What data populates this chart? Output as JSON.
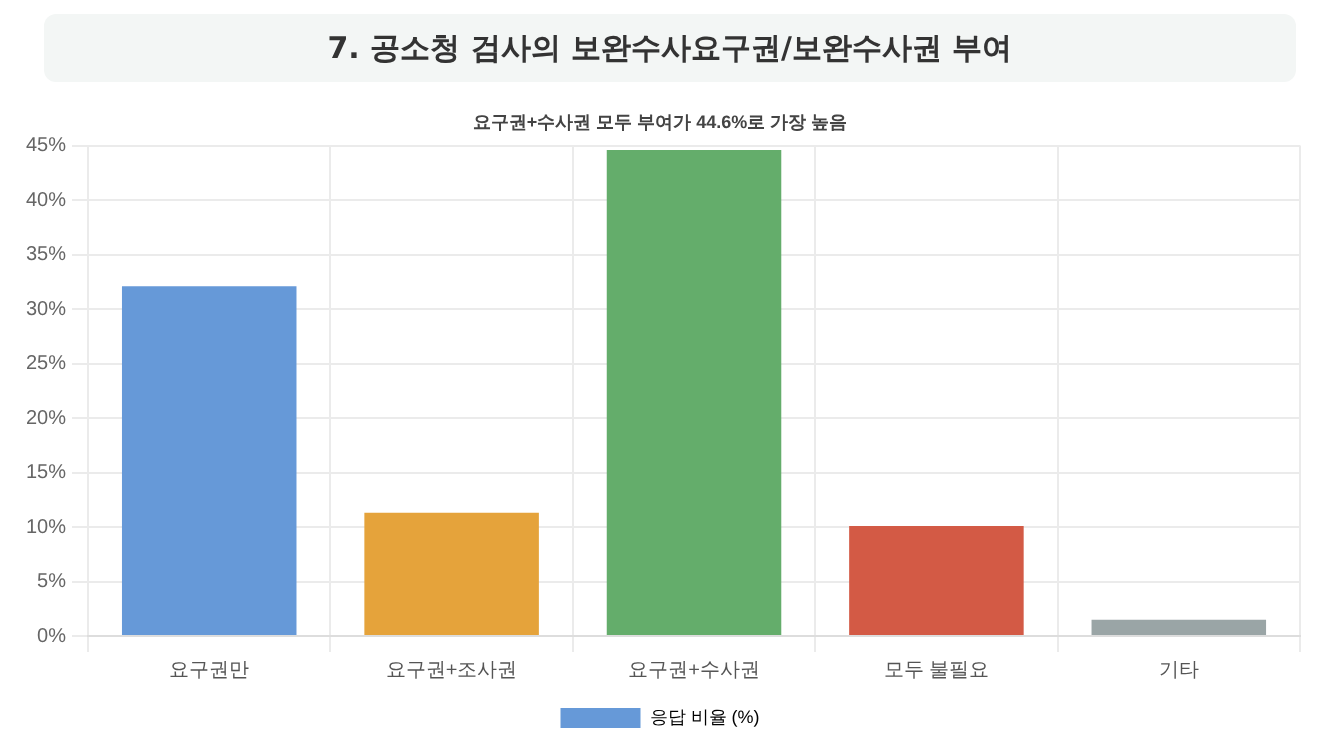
{
  "chart_data": {
    "type": "bar",
    "title": "7. 공소청 검사의 보완수사요구권/보완수사권 부여",
    "subtitle": "요구권+수사권 모두 부여가 44.6%로 가장 높음",
    "categories": [
      "요구권만",
      "요구권+조사권",
      "요구권+수사권",
      "모두 불필요",
      "기타"
    ],
    "series": [
      {
        "name": "응답 비율 (%)",
        "color": "#6699d8",
        "colors": [
          "#6699d8",
          "#e5a33b",
          "#64ad6b",
          "#d35a45",
          "#9aa5a6"
        ],
        "values": [
          32.1,
          11.3,
          44.6,
          10.1,
          1.5
        ]
      }
    ],
    "ylim": [
      0,
      45
    ],
    "yticks": [
      {
        "value": 0,
        "label": "0%"
      },
      {
        "value": 5,
        "label": "5%"
      },
      {
        "value": 10,
        "label": "10%"
      },
      {
        "value": 15,
        "label": "15%"
      },
      {
        "value": 20,
        "label": "20%"
      },
      {
        "value": 25,
        "label": "25%"
      },
      {
        "value": 30,
        "label": "30%"
      },
      {
        "value": 35,
        "label": "35%"
      },
      {
        "value": 40,
        "label": "40%"
      },
      {
        "value": 45,
        "label": "45%"
      }
    ],
    "grid": true,
    "legend": "bottom"
  }
}
